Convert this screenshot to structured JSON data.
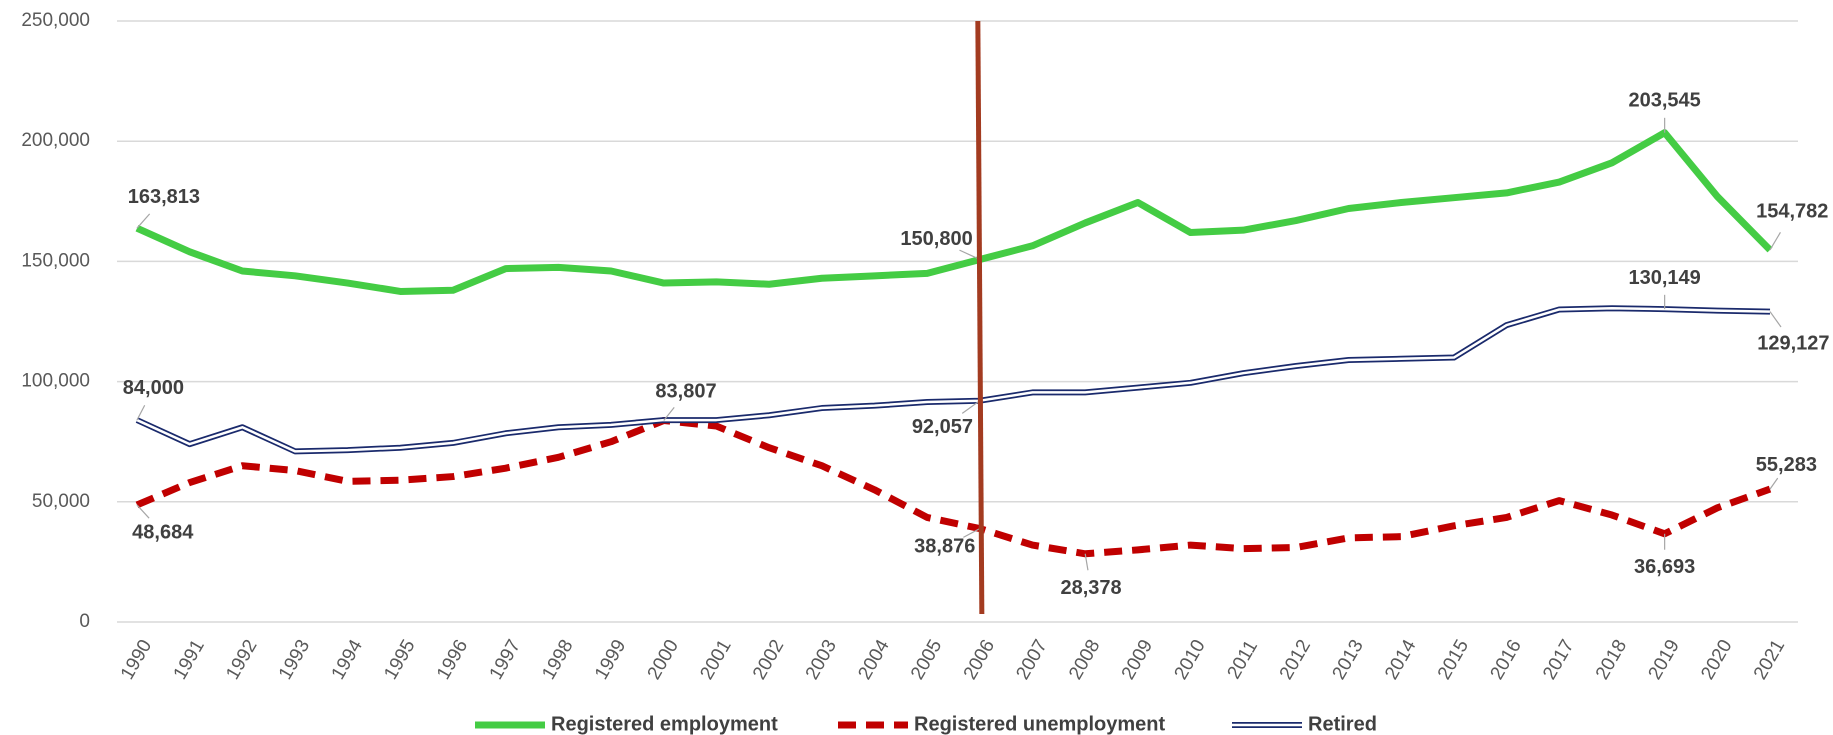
{
  "chart_data": {
    "type": "line",
    "categories": [
      "1990",
      "1991",
      "1992",
      "1993",
      "1994",
      "1995",
      "1996",
      "1997",
      "1998",
      "1999",
      "2000",
      "2001",
      "2002",
      "2003",
      "2004",
      "2005",
      "2006",
      "2007",
      "2008",
      "2009",
      "2010",
      "2011",
      "2012",
      "2013",
      "2014",
      "2015",
      "2016",
      "2017",
      "2018",
      "2019",
      "2020",
      "2021"
    ],
    "series": [
      {
        "name": "Registered employment",
        "color": "#44cc44",
        "style": "solid",
        "values": [
          163813,
          154000,
          146000,
          144000,
          141000,
          137500,
          138000,
          147000,
          147500,
          146000,
          141000,
          141500,
          140500,
          143000,
          144000,
          145000,
          150800,
          156500,
          166000,
          174500,
          162000,
          163000,
          167000,
          172000,
          174500,
          176500,
          178500,
          183000,
          191000,
          203545,
          177000,
          154782
        ],
        "value_labels": [
          "163,813",
          null,
          null,
          null,
          null,
          null,
          null,
          null,
          null,
          null,
          null,
          null,
          null,
          null,
          null,
          null,
          "150,800",
          null,
          null,
          null,
          null,
          null,
          null,
          null,
          null,
          null,
          null,
          null,
          null,
          "203,545",
          null,
          "154,782"
        ]
      },
      {
        "name": "Registered unemployment",
        "color": "#c00000",
        "style": "dashed",
        "values": [
          48684,
          58000,
          65000,
          63000,
          58500,
          59000,
          60500,
          64000,
          68500,
          75000,
          83807,
          81500,
          72500,
          65000,
          55000,
          43500,
          38876,
          32000,
          28378,
          30000,
          32000,
          30500,
          31000,
          35000,
          35500,
          40000,
          43500,
          50500,
          44500,
          36693,
          47500,
          55283
        ],
        "value_labels": [
          "48,684",
          null,
          null,
          null,
          null,
          null,
          null,
          null,
          null,
          null,
          "83,807",
          null,
          null,
          null,
          null,
          null,
          "38,876",
          null,
          "28,378",
          null,
          null,
          null,
          null,
          null,
          null,
          null,
          null,
          null,
          null,
          "36,693",
          null,
          "55,283"
        ]
      },
      {
        "name": "Retired",
        "color": "#1a2a6c",
        "style": "double",
        "values": [
          84000,
          74000,
          81000,
          71000,
          71500,
          72500,
          74500,
          78500,
          81000,
          82000,
          84000,
          84000,
          86000,
          89000,
          90000,
          91500,
          92057,
          95500,
          95500,
          97500,
          99500,
          103500,
          106500,
          109000,
          109500,
          110000,
          123500,
          130000,
          130500,
          130149,
          129500,
          129127
        ],
        "value_labels": [
          "84,000",
          null,
          null,
          null,
          null,
          null,
          null,
          null,
          null,
          null,
          null,
          null,
          null,
          null,
          null,
          null,
          "92,057",
          null,
          null,
          null,
          null,
          null,
          null,
          null,
          null,
          null,
          null,
          null,
          null,
          "130,149",
          null,
          "129,127"
        ]
      }
    ],
    "ylim": [
      0,
      250000
    ],
    "yticks": [
      0,
      {
        "value": 50000,
        "label": "50,000"
      },
      {
        "value": 100000,
        "label": "100,000"
      },
      {
        "value": 150000,
        "label": "150,000"
      },
      {
        "value": 200000,
        "label": "200,000"
      },
      {
        "value": 250000,
        "label": "250,000"
      }
    ],
    "grid": true,
    "legend": "bottom",
    "vline": {
      "category": "2006",
      "color": "#a33b20"
    }
  }
}
